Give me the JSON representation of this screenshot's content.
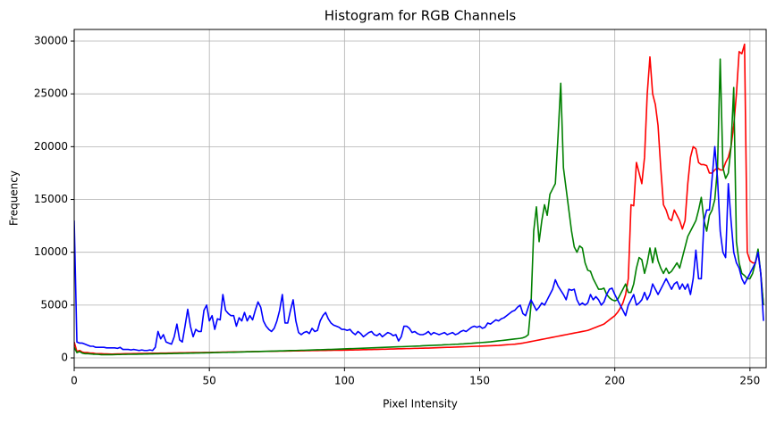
{
  "chart_data": {
    "type": "line",
    "title": "Histogram for RGB Channels",
    "x_label": "Pixel Intensity",
    "y_label": "Frequency",
    "x": [
      0,
      1,
      2,
      3,
      4,
      5,
      6,
      7,
      8,
      9,
      10,
      11,
      12,
      13,
      14,
      15,
      16,
      17,
      18,
      19,
      20,
      21,
      22,
      23,
      24,
      25,
      26,
      27,
      28,
      29,
      30,
      31,
      32,
      33,
      34,
      35,
      36,
      37,
      38,
      39,
      40,
      41,
      42,
      43,
      44,
      45,
      46,
      47,
      48,
      49,
      50,
      51,
      52,
      53,
      54,
      55,
      56,
      57,
      58,
      59,
      60,
      61,
      62,
      63,
      64,
      65,
      66,
      67,
      68,
      69,
      70,
      71,
      72,
      73,
      74,
      75,
      76,
      77,
      78,
      79,
      80,
      81,
      82,
      83,
      84,
      85,
      86,
      87,
      88,
      89,
      90,
      91,
      92,
      93,
      94,
      95,
      96,
      97,
      98,
      99,
      100,
      101,
      102,
      103,
      104,
      105,
      106,
      107,
      108,
      109,
      110,
      111,
      112,
      113,
      114,
      115,
      116,
      117,
      118,
      119,
      120,
      121,
      122,
      123,
      124,
      125,
      126,
      127,
      128,
      129,
      130,
      131,
      132,
      133,
      134,
      135,
      136,
      137,
      138,
      139,
      140,
      141,
      142,
      143,
      144,
      145,
      146,
      147,
      148,
      149,
      150,
      151,
      152,
      153,
      154,
      155,
      156,
      157,
      158,
      159,
      160,
      161,
      162,
      163,
      164,
      165,
      166,
      167,
      168,
      169,
      170,
      171,
      172,
      173,
      174,
      175,
      176,
      177,
      178,
      179,
      180,
      181,
      182,
      183,
      184,
      185,
      186,
      187,
      188,
      189,
      190,
      191,
      192,
      193,
      194,
      195,
      196,
      197,
      198,
      199,
      200,
      201,
      202,
      203,
      204,
      205,
      206,
      207,
      208,
      209,
      210,
      211,
      212,
      213,
      214,
      215,
      216,
      217,
      218,
      219,
      220,
      221,
      222,
      223,
      224,
      225,
      226,
      227,
      228,
      229,
      230,
      231,
      232,
      233,
      234,
      235,
      236,
      237,
      238,
      239,
      240,
      241,
      242,
      243,
      244,
      245,
      246,
      247,
      248,
      249,
      250,
      251,
      252,
      253,
      254,
      255
    ],
    "series": [
      {
        "name": "red",
        "color": "#ff0000",
        "values": [
          1500,
          600,
          700,
          550,
          500,
          500,
          450,
          450,
          400,
          400,
          400,
          380,
          380,
          370,
          360,
          370,
          380,
          380,
          390,
          400,
          400,
          400,
          410,
          410,
          420,
          420,
          420,
          430,
          430,
          440,
          440,
          440,
          450,
          450,
          450,
          460,
          460,
          470,
          470,
          480,
          480,
          480,
          490,
          490,
          500,
          500,
          510,
          510,
          520,
          520,
          520,
          530,
          530,
          540,
          540,
          550,
          550,
          560,
          560,
          570,
          570,
          570,
          580,
          580,
          590,
          590,
          600,
          600,
          600,
          610,
          610,
          620,
          620,
          620,
          630,
          630,
          640,
          640,
          640,
          650,
          650,
          660,
          660,
          660,
          670,
          670,
          680,
          680,
          690,
          690,
          690,
          700,
          700,
          700,
          710,
          710,
          720,
          720,
          730,
          730,
          740,
          740,
          750,
          750,
          760,
          760,
          770,
          780,
          780,
          790,
          790,
          800,
          800,
          810,
          820,
          820,
          830,
          840,
          840,
          850,
          860,
          860,
          870,
          880,
          880,
          890,
          900,
          900,
          910,
          920,
          930,
          930,
          940,
          950,
          960,
          970,
          980,
          990,
          1000,
          1000,
          1010,
          1020,
          1030,
          1040,
          1050,
          1060,
          1070,
          1080,
          1090,
          1100,
          1110,
          1120,
          1130,
          1140,
          1150,
          1160,
          1170,
          1180,
          1200,
          1220,
          1240,
          1260,
          1280,
          1300,
          1330,
          1360,
          1400,
          1450,
          1500,
          1550,
          1600,
          1650,
          1700,
          1750,
          1800,
          1850,
          1900,
          1950,
          2000,
          2050,
          2100,
          2150,
          2200,
          2250,
          2300,
          2350,
          2400,
          2450,
          2500,
          2550,
          2600,
          2700,
          2800,
          2900,
          3000,
          3100,
          3200,
          3400,
          3600,
          3800,
          4000,
          4300,
          4700,
          5200,
          6000,
          7500,
          14500,
          14400,
          18500,
          17500,
          16500,
          19000,
          25000,
          28500,
          25000,
          24000,
          22000,
          18000,
          14500,
          14000,
          13200,
          13000,
          14000,
          13500,
          13000,
          12200,
          13000,
          16500,
          19000,
          20000,
          19800,
          18500,
          18300,
          18300,
          18200,
          17500,
          17500,
          17800,
          18000,
          17800,
          17800,
          18500,
          19000,
          20000,
          22000,
          25000,
          29000,
          28800,
          29700,
          10000,
          9200,
          9000,
          9000,
          10000,
          8000,
          5000
        ]
      },
      {
        "name": "green",
        "color": "#008000",
        "values": [
          1000,
          500,
          600,
          450,
          400,
          400,
          380,
          350,
          350,
          330,
          300,
          300,
          300,
          300,
          300,
          310,
          320,
          320,
          330,
          330,
          340,
          340,
          350,
          350,
          360,
          360,
          370,
          370,
          380,
          380,
          390,
          390,
          400,
          400,
          400,
          410,
          410,
          420,
          420,
          430,
          430,
          440,
          440,
          450,
          450,
          460,
          460,
          470,
          470,
          480,
          480,
          490,
          500,
          500,
          510,
          520,
          520,
          530,
          540,
          540,
          550,
          560,
          560,
          570,
          580,
          580,
          590,
          600,
          600,
          610,
          620,
          620,
          630,
          640,
          640,
          650,
          660,
          660,
          670,
          680,
          690,
          690,
          700,
          710,
          720,
          720,
          730,
          740,
          750,
          760,
          770,
          770,
          780,
          790,
          800,
          800,
          810,
          820,
          830,
          840,
          850,
          860,
          870,
          880,
          890,
          900,
          910,
          920,
          930,
          940,
          950,
          960,
          970,
          980,
          990,
          1000,
          1010,
          1020,
          1030,
          1040,
          1050,
          1060,
          1070,
          1080,
          1090,
          1100,
          1110,
          1120,
          1130,
          1150,
          1160,
          1170,
          1180,
          1190,
          1200,
          1210,
          1220,
          1240,
          1250,
          1260,
          1280,
          1290,
          1300,
          1320,
          1330,
          1350,
          1370,
          1380,
          1400,
          1420,
          1440,
          1460,
          1480,
          1500,
          1520,
          1550,
          1580,
          1610,
          1640,
          1670,
          1700,
          1730,
          1760,
          1790,
          1820,
          1850,
          1900,
          2000,
          2200,
          5000,
          12000,
          14300,
          11000,
          13000,
          14500,
          13500,
          15500,
          16000,
          16500,
          21000,
          26000,
          18000,
          16000,
          14000,
          12000,
          10500,
          10000,
          10600,
          10400,
          9000,
          8300,
          8200,
          7500,
          7000,
          6500,
          6500,
          6600,
          6000,
          5700,
          5500,
          5400,
          5500,
          6000,
          6500,
          7000,
          6200,
          6200,
          7000,
          8500,
          9500,
          9300,
          8000,
          9000,
          10400,
          9000,
          10400,
          9200,
          8500,
          8000,
          8500,
          8000,
          8200,
          8600,
          9000,
          8500,
          9500,
          10500,
          11500,
          12000,
          12500,
          13000,
          14000,
          15200,
          13000,
          12000,
          13500,
          14000,
          15000,
          18000,
          28300,
          18000,
          17000,
          17500,
          20000,
          25600,
          11000,
          9000,
          8000,
          7800,
          7500,
          7500,
          8000,
          9000,
          10300,
          8000,
          5000
        ]
      },
      {
        "name": "blue",
        "color": "#0000ff",
        "values": [
          13000,
          1500,
          1400,
          1400,
          1300,
          1200,
          1100,
          1100,
          1000,
          1000,
          1000,
          1000,
          950,
          950,
          950,
          950,
          900,
          1000,
          800,
          800,
          800,
          750,
          800,
          750,
          700,
          750,
          700,
          700,
          750,
          700,
          1000,
          2500,
          1800,
          2200,
          1500,
          1400,
          1300,
          2000,
          3200,
          1700,
          1500,
          3000,
          4600,
          3000,
          2000,
          2700,
          2500,
          2500,
          4500,
          5000,
          3500,
          4000,
          2700,
          3700,
          3600,
          6000,
          4500,
          4200,
          4000,
          4000,
          3000,
          3800,
          3500,
          4300,
          3500,
          4000,
          3600,
          4500,
          5300,
          4800,
          3500,
          3000,
          2700,
          2500,
          2800,
          3500,
          4500,
          6000,
          3300,
          3300,
          4500,
          5500,
          3500,
          2400,
          2200,
          2400,
          2500,
          2300,
          2800,
          2500,
          2600,
          3500,
          4000,
          4300,
          3700,
          3300,
          3100,
          3000,
          2900,
          2700,
          2700,
          2600,
          2700,
          2400,
          2200,
          2500,
          2300,
          2000,
          2200,
          2400,
          2500,
          2200,
          2100,
          2300,
          2000,
          2200,
          2400,
          2300,
          2100,
          2200,
          1600,
          2000,
          3000,
          3000,
          2800,
          2400,
          2500,
          2300,
          2200,
          2200,
          2300,
          2500,
          2200,
          2400,
          2300,
          2200,
          2300,
          2400,
          2200,
          2300,
          2400,
          2200,
          2300,
          2500,
          2600,
          2500,
          2700,
          2900,
          3000,
          2900,
          3000,
          2800,
          2900,
          3300,
          3200,
          3400,
          3600,
          3500,
          3700,
          3800,
          4000,
          4200,
          4400,
          4500,
          4800,
          5000,
          4200,
          4000,
          4800,
          5500,
          5000,
          4500,
          4800,
          5200,
          5000,
          5500,
          6000,
          6500,
          7400,
          6800,
          6400,
          6000,
          5500,
          6500,
          6400,
          6500,
          5500,
          5000,
          5200,
          5000,
          5200,
          6000,
          5500,
          5800,
          5500,
          5000,
          5300,
          6000,
          6500,
          6600,
          6000,
          5500,
          5000,
          4500,
          4000,
          5000,
          5500,
          6000,
          5000,
          5200,
          5500,
          6200,
          5500,
          6000,
          7000,
          6500,
          6000,
          6500,
          7000,
          7500,
          7000,
          6500,
          7000,
          7200,
          6500,
          7000,
          6500,
          7000,
          6000,
          7500,
          10200,
          7500,
          7500,
          13000,
          14000,
          14000,
          17000,
          20000,
          17000,
          12000,
          10000,
          9500,
          16500,
          13000,
          10000,
          9000,
          8500,
          7500,
          7000,
          7500,
          8000,
          8500,
          9000,
          10000,
          8000,
          3500
        ]
      }
    ],
    "xlim": [
      0,
      256
    ],
    "ylim": [
      -927,
      31100
    ],
    "xticks": [
      0,
      50,
      100,
      150,
      200,
      250
    ],
    "yticks": [
      0,
      5000,
      10000,
      15000,
      20000,
      25000,
      30000
    ],
    "grid": true
  }
}
